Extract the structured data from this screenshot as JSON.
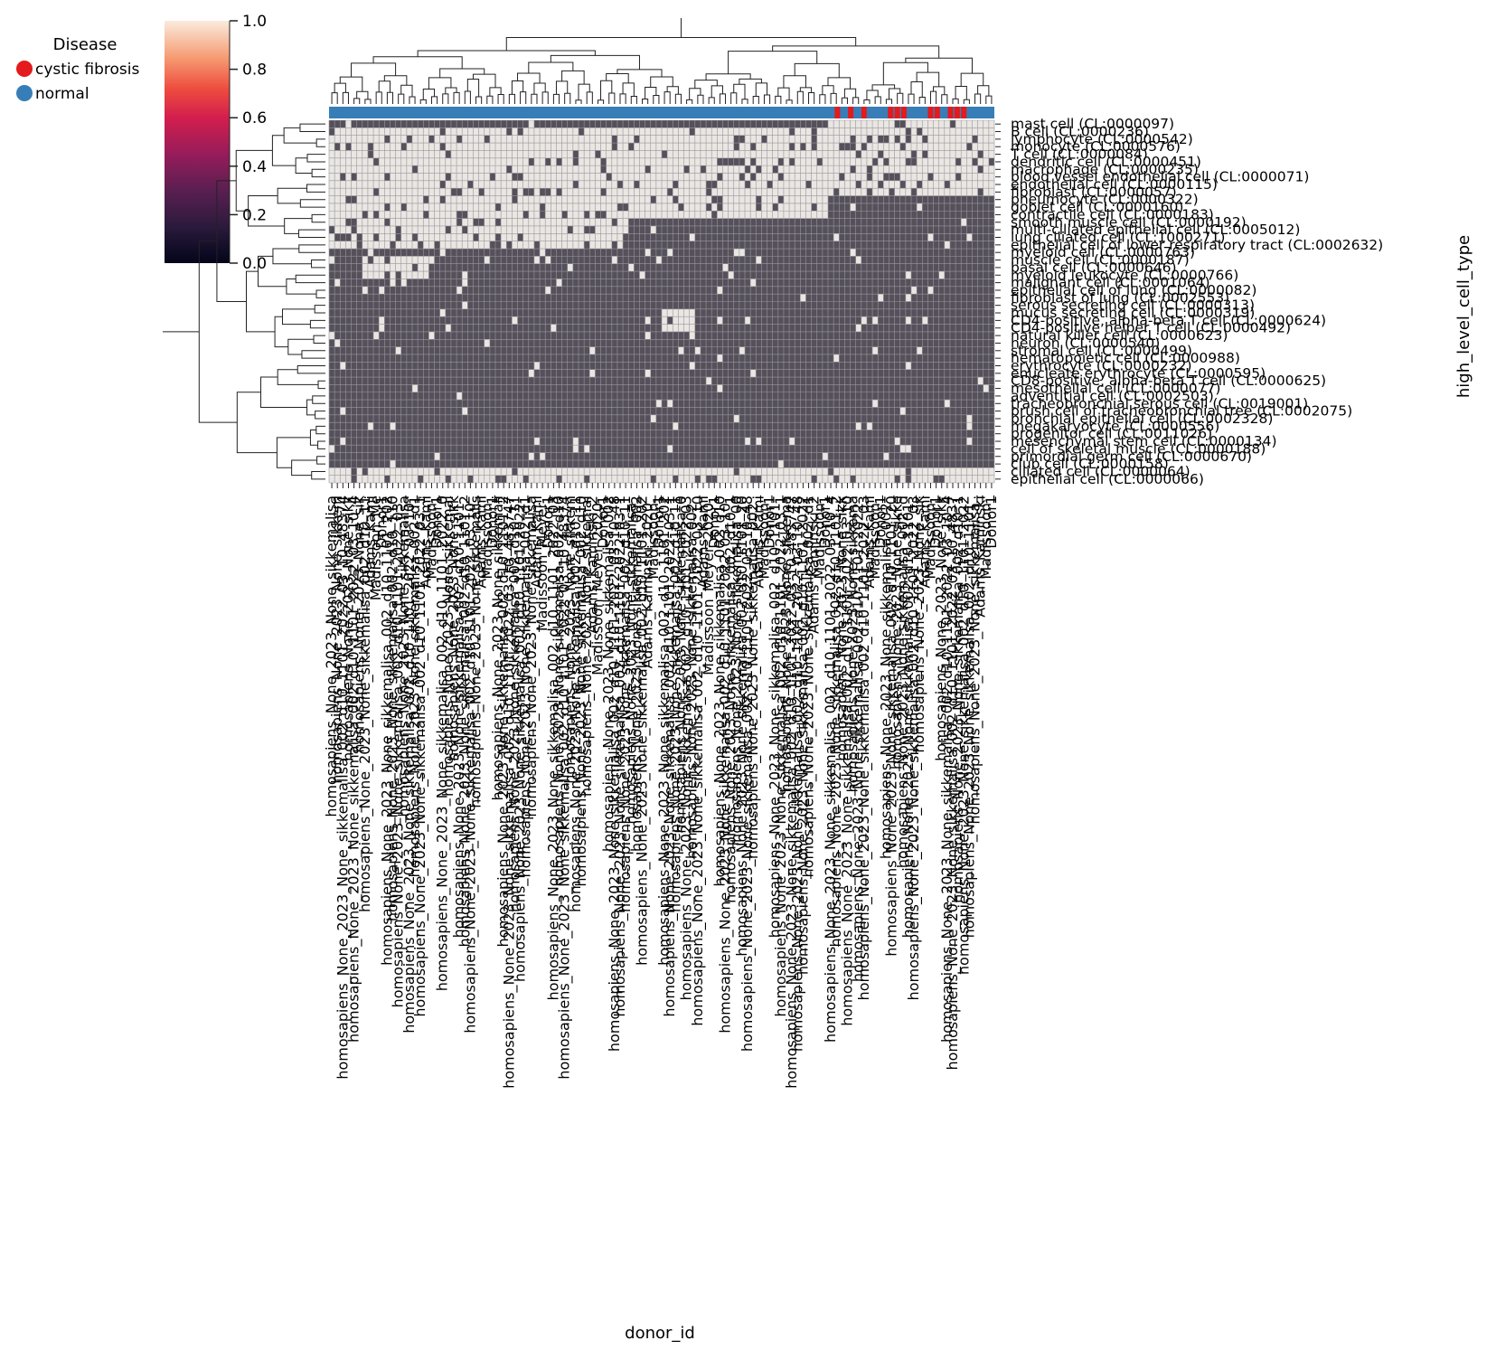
{
  "chart_data": {
    "type": "heatmap",
    "subtype": "clustermap",
    "title": "",
    "xlabel": "donor_id",
    "ylabel": "high_level_cell_type",
    "colorbar": {
      "ticks": [
        "0.0",
        "0.2",
        "0.4",
        "0.6",
        "0.8",
        "1.0"
      ],
      "range": [
        0,
        1
      ],
      "colormap": "rocket"
    },
    "legend": {
      "title": "Disease",
      "placement": "top-left",
      "items": [
        {
          "label": "cystic fibrosis",
          "color": "#e41a1c"
        },
        {
          "label": "normal",
          "color": "#377eb8"
        }
      ]
    },
    "row_labels": [
      "mast cell (CL:0000097)",
      "B cell (CL:0000236)",
      "lymphocyte (CL:0000542)",
      "monocyte (CL:0000576)",
      "T cell (CL:0000084)",
      "dendritic cell (CL:0000451)",
      "macrophage (CL:0000235)",
      "blood vessel endothelial cell (CL:0000071)",
      "endothelial cell (CL:0000115)",
      "fibroblast (CL:0000057)",
      "pneumocyte (CL:0000322)",
      "goblet cell (CL:0000160)",
      "contractile cell (CL:0000183)",
      "smooth muscle cell (CL:0000192)",
      "multi-ciliated epithelial cell (CL:0005012)",
      "lung ciliated cell (CL:1000271)",
      "epithelial cell of lower respiratory tract (CL:0002632)",
      "myeloid cell (CL:0000763)",
      "muscle cell (CL:0000187)",
      "basal cell (CL:0000646)",
      "myeloid leukocyte (CL:0000766)",
      "malignant cell (CL:0001064)",
      "epithelial cell of lung (CL:0000082)",
      "fibroblast of lung (CL:0002553)",
      "serous secreting cell (CL:0000313)",
      "mucus secreting cell (CL:0000319)",
      "CD4-positive, alpha-beta T cell (CL:0000624)",
      "CD4-positive helper T cell (CL:0000492)",
      "natural killer cell (CL:0000623)",
      "neuron (CL:0000540)",
      "stromal cell (CL:0000499)",
      "hematopoietic cell (CL:0000988)",
      "erythrocyte (CL:0000232)",
      "enucleate erythrocyte (CL:0000595)",
      "CD8-positive, alpha-beta T cell (CL:0000625)",
      "mesothelial cell (CL:0000077)",
      "adventitial cell (CL:0002503)",
      "tracheobronchial serous cell (CL:0019001)",
      "brush cell of tracheobronchial tree (CL:0002075)",
      "bronchial epithelial cell (CL:0002328)",
      "megakaryocyte (CL:0000556)",
      "progenitor cell (CL:0011026)",
      "mesenchymal stem cell (CL:0000134)",
      "cell of skeletal muscle (CL:0000188)",
      "primordial germ cell (CL:0000670)",
      "club cell (CL:0000158)",
      "ciliated cell (CL:0000064)",
      "epithelial cell (CL:0000066)"
    ],
    "column_labels": [
      "homosapiens_None_2023_None_sikkemalisa_002_d10_1101_2022_03_10_483747",
      "homosapiens_None_2023_None_sikkemalisa_002_d10_1101_2022_03_10_483747",
      "homosapiens_None_2023_None_sikkemalisa_002_d10_1101_2022_03_10_483747",
      "homosapiens_None_2023_None_sikkemalisa_002_d10_1101_2022_03_10_483747",
      "homosapiens_None_2023_None_sikkemalisa_002_d10_1101_2022_03_10_483747",
      "homosapiens_None_2023_None_sikkemalisa_002_d10_1101_2022_03_10_483747",
      "homosapiens_None_2023_None_sikkemalisa_002_d10_1101_2022_03_10_483747",
      "Adams_Kaminski_2020_",
      "Madissoon_Meyer_2020_",
      "Donor1"
    ],
    "disease_annotation": {
      "normal_color": "#377eb8",
      "cystic_fibrosis_color": "#e41a1c",
      "cystic_fibrosis_fraction_columns": [
        0.76,
        0.78,
        0.8,
        0.84,
        0.85,
        0.86,
        0.9,
        0.91,
        0.93,
        0.94,
        0.95
      ]
    },
    "bright_blocks": [
      {
        "rows": [
          1,
          12
        ],
        "cols": [
          0,
          0.75
        ]
      },
      {
        "rows": [
          0,
          9
        ],
        "cols": [
          0.75,
          1.0
        ]
      },
      {
        "rows": [
          46,
          47
        ],
        "cols": [
          0,
          1.0
        ]
      },
      {
        "rows": [
          13,
          16
        ],
        "cols": [
          0,
          0.45
        ]
      },
      {
        "rows": [
          25,
          27
        ],
        "cols": [
          0.5,
          0.55
        ]
      },
      {
        "rows": [
          18,
          20
        ],
        "cols": [
          0.05,
          0.15
        ]
      }
    ]
  }
}
